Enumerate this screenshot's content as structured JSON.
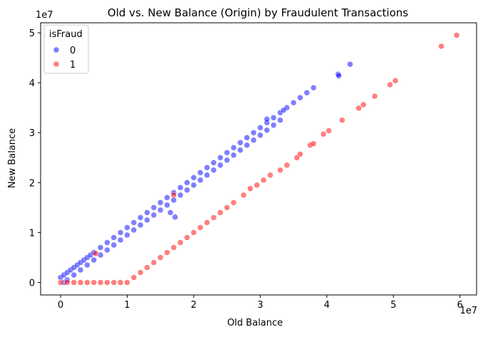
{
  "chart_data": {
    "type": "scatter",
    "title": "Old vs. New Balance (Origin) by Fraudulent Transactions",
    "xlabel": "Old Balance",
    "ylabel": "New Balance",
    "x_multiplier_label": "1e7",
    "y_multiplier_label": "1e7",
    "xlim": [
      -3000000,
      62500000
    ],
    "ylim": [
      -2500000,
      52000000
    ],
    "x_ticks": [
      0,
      10000000,
      20000000,
      30000000,
      40000000,
      50000000,
      60000000
    ],
    "x_tick_labels": [
      "0",
      "1",
      "2",
      "3",
      "4",
      "5",
      "6"
    ],
    "y_ticks": [
      0,
      10000000,
      20000000,
      30000000,
      40000000,
      50000000
    ],
    "y_tick_labels": [
      "0",
      "1",
      "2",
      "3",
      "4",
      "5"
    ],
    "grid": false,
    "legend": {
      "title": "isFraud",
      "placement": "top-left",
      "entries": [
        "0",
        "1"
      ]
    },
    "colors": {
      "0": "#0000ff",
      "1": "#ff0000"
    },
    "marker_alpha": 0.5,
    "series": [
      {
        "name": "0",
        "points": [
          [
            0,
            1000000
          ],
          [
            500000,
            1500000
          ],
          [
            1000000,
            2000000
          ],
          [
            1500000,
            2500000
          ],
          [
            2000000,
            3000000
          ],
          [
            2500000,
            3500000
          ],
          [
            3000000,
            4000000
          ],
          [
            3500000,
            4500000
          ],
          [
            4000000,
            5000000
          ],
          [
            4500000,
            5500000
          ],
          [
            5000000,
            6000000
          ],
          [
            6000000,
            7000000
          ],
          [
            7000000,
            8000000
          ],
          [
            8000000,
            9000000
          ],
          [
            9000000,
            10000000
          ],
          [
            10000000,
            11000000
          ],
          [
            11000000,
            12000000
          ],
          [
            12000000,
            13000000
          ],
          [
            13000000,
            14000000
          ],
          [
            14000000,
            15000000
          ],
          [
            15000000,
            16000000
          ],
          [
            16000000,
            17000000
          ],
          [
            17000000,
            18000000
          ],
          [
            18000000,
            19000000
          ],
          [
            19000000,
            20000000
          ],
          [
            20000000,
            21000000
          ],
          [
            21000000,
            22000000
          ],
          [
            22000000,
            23000000
          ],
          [
            23000000,
            24000000
          ],
          [
            24000000,
            25000000
          ],
          [
            25000000,
            26000000
          ],
          [
            26000000,
            27000000
          ],
          [
            27000000,
            28000000
          ],
          [
            28000000,
            29000000
          ],
          [
            29000000,
            30000000
          ],
          [
            30000000,
            31000000
          ],
          [
            31000000,
            32000000
          ],
          [
            32000000,
            33000000
          ],
          [
            33000000,
            34000000
          ],
          [
            34000000,
            35000000
          ],
          [
            35000000,
            36000000
          ],
          [
            36000000,
            37000000
          ],
          [
            37000000,
            38000000
          ],
          [
            38000000,
            39000000
          ],
          [
            500000,
            0
          ],
          [
            1000000,
            500000
          ],
          [
            2000000,
            1500000
          ],
          [
            3000000,
            2500000
          ],
          [
            4000000,
            3500000
          ],
          [
            5000000,
            4500000
          ],
          [
            6000000,
            5500000
          ],
          [
            7000000,
            6500000
          ],
          [
            8000000,
            7500000
          ],
          [
            9000000,
            8500000
          ],
          [
            10000000,
            9500000
          ],
          [
            11000000,
            10500000
          ],
          [
            12000000,
            11500000
          ],
          [
            13000000,
            12500000
          ],
          [
            14000000,
            13500000
          ],
          [
            15000000,
            14500000
          ],
          [
            16000000,
            15500000
          ],
          [
            17000000,
            16500000
          ],
          [
            18000000,
            17500000
          ],
          [
            19000000,
            18500000
          ],
          [
            20000000,
            19500000
          ],
          [
            21000000,
            20500000
          ],
          [
            22000000,
            21500000
          ],
          [
            23000000,
            22500000
          ],
          [
            24000000,
            23500000
          ],
          [
            25000000,
            24500000
          ],
          [
            26000000,
            25500000
          ],
          [
            27000000,
            26500000
          ],
          [
            28000000,
            27500000
          ],
          [
            29000000,
            28500000
          ],
          [
            30000000,
            29500000
          ],
          [
            31000000,
            30500000
          ],
          [
            32000000,
            31500000
          ],
          [
            33000000,
            32500000
          ],
          [
            16500000,
            14000000
          ],
          [
            17200000,
            13100000
          ],
          [
            31000000,
            32700000
          ],
          [
            33500000,
            34500000
          ],
          [
            41700000,
            41700000
          ],
          [
            43500000,
            43700000
          ],
          [
            41800000,
            41400000
          ]
        ]
      },
      {
        "name": "1",
        "points": [
          [
            0,
            0
          ],
          [
            1000000,
            0
          ],
          [
            2000000,
            0
          ],
          [
            3000000,
            0
          ],
          [
            4000000,
            0
          ],
          [
            5000000,
            0
          ],
          [
            6000000,
            0
          ],
          [
            7000000,
            0
          ],
          [
            8000000,
            0
          ],
          [
            9000000,
            0
          ],
          [
            10000000,
            0
          ],
          [
            11000000,
            1000000
          ],
          [
            12000000,
            2000000
          ],
          [
            13000000,
            3000000
          ],
          [
            14000000,
            4000000
          ],
          [
            15000000,
            5000000
          ],
          [
            16000000,
            6000000
          ],
          [
            17000000,
            7000000
          ],
          [
            18000000,
            8000000
          ],
          [
            19000000,
            9000000
          ],
          [
            20000000,
            10000000
          ],
          [
            21000000,
            11000000
          ],
          [
            22000000,
            12000000
          ],
          [
            23000000,
            13000000
          ],
          [
            24000000,
            14000000
          ],
          [
            25000000,
            15000000
          ],
          [
            26000000,
            16000000
          ],
          [
            27500000,
            17500000
          ],
          [
            28500000,
            18800000
          ],
          [
            29500000,
            19500000
          ],
          [
            30500000,
            20500000
          ],
          [
            31500000,
            21500000
          ],
          [
            33000000,
            22500000
          ],
          [
            34000000,
            23500000
          ],
          [
            35500000,
            25000000
          ],
          [
            36000000,
            25700000
          ],
          [
            37500000,
            27500000
          ],
          [
            38000000,
            27800000
          ],
          [
            39500000,
            29700000
          ],
          [
            40300000,
            30400000
          ],
          [
            42300000,
            32500000
          ],
          [
            44800000,
            34900000
          ],
          [
            45500000,
            35600000
          ],
          [
            47200000,
            37300000
          ],
          [
            49500000,
            39600000
          ],
          [
            50300000,
            40400000
          ],
          [
            57200000,
            47300000
          ],
          [
            59500000,
            49500000
          ],
          [
            5300000,
            5800000
          ],
          [
            17000000,
            17500000
          ]
        ]
      }
    ]
  }
}
